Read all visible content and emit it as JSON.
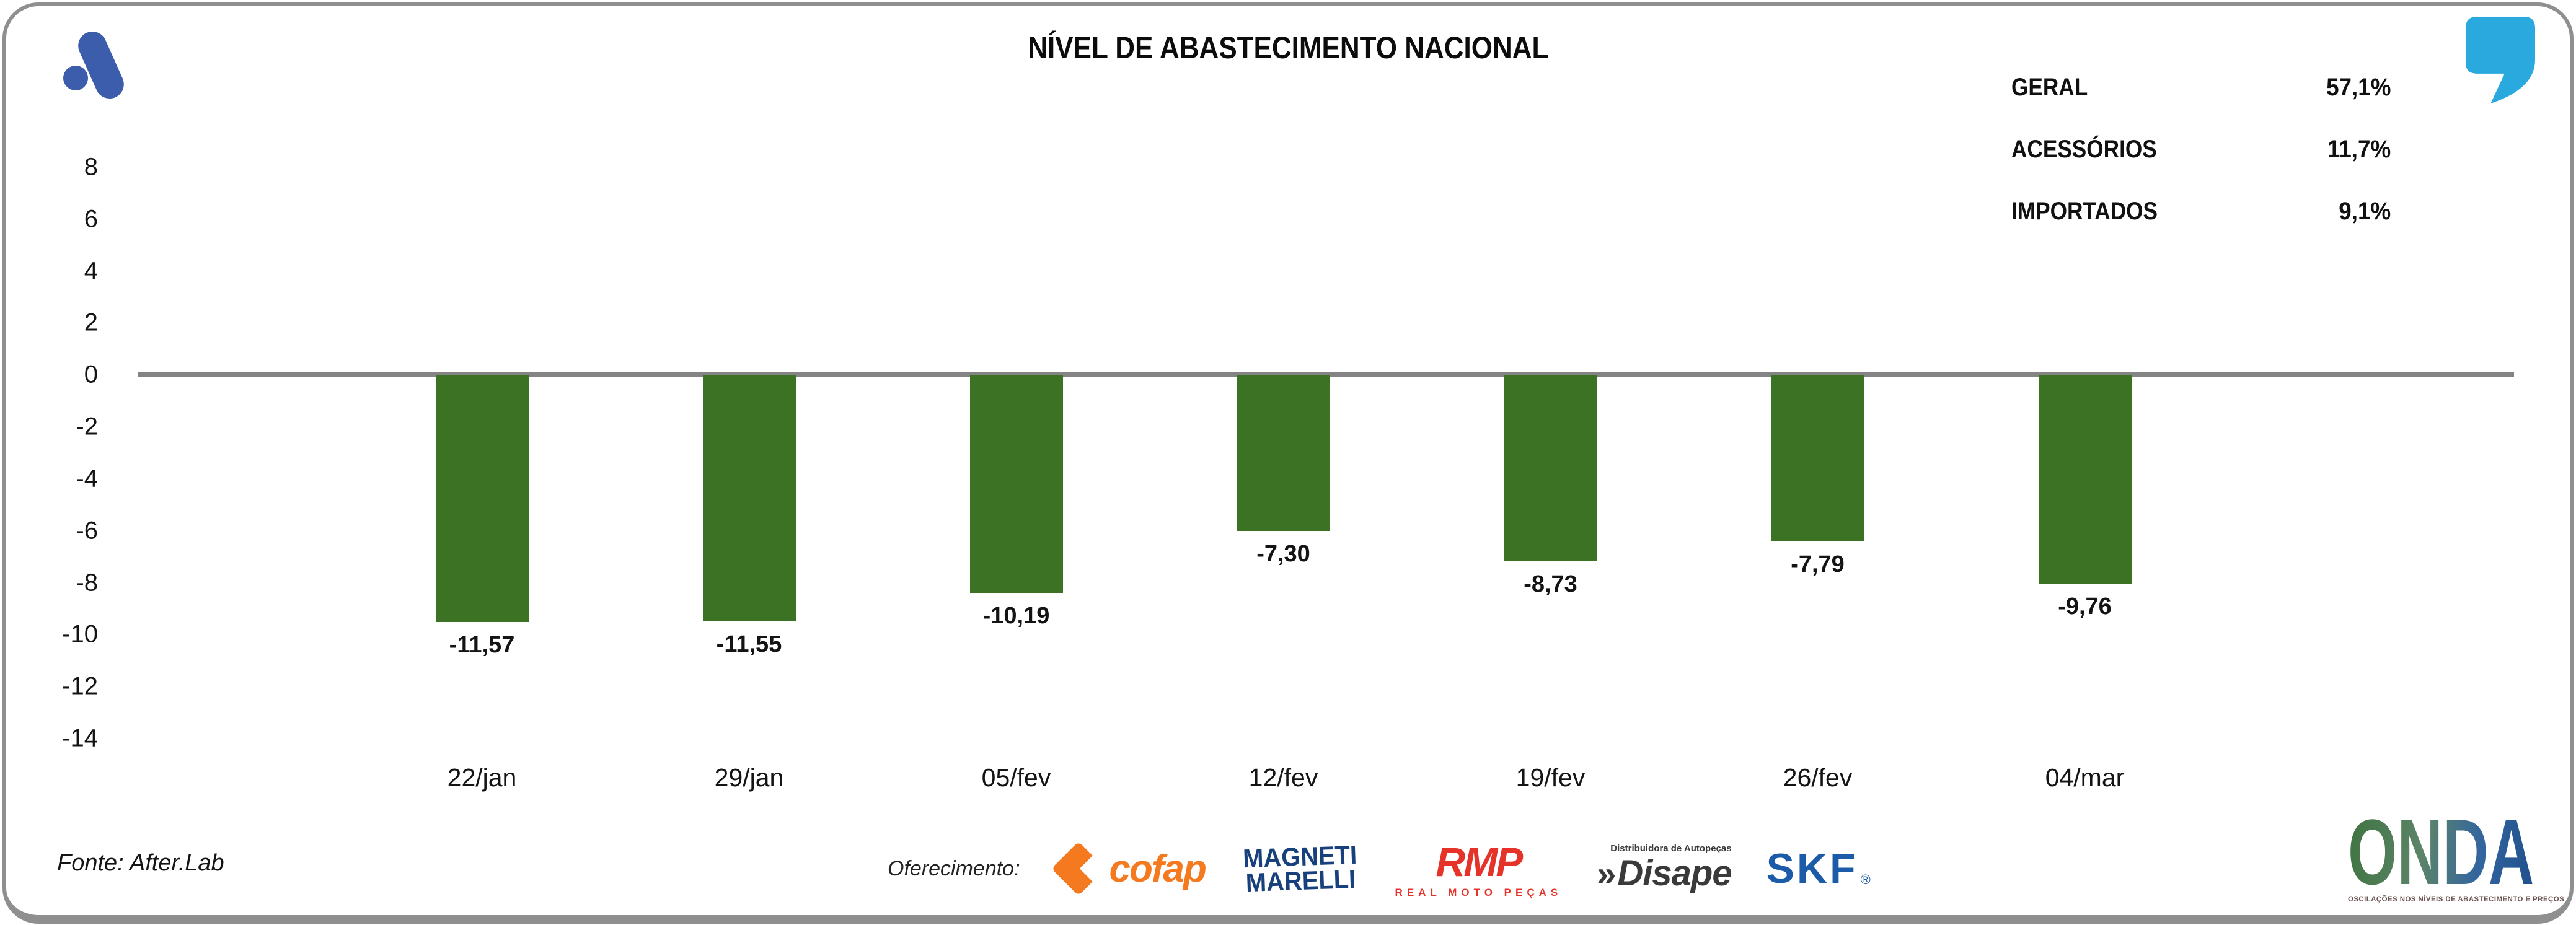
{
  "chart_data": {
    "type": "bar",
    "title": "NÍVEL DE ABASTECIMENTO NACIONAL",
    "categories": [
      "22/jan",
      "29/jan",
      "05/fev",
      "12/fev",
      "19/fev",
      "26/fev",
      "04/mar"
    ],
    "values": [
      -11.57,
      -11.55,
      -10.19,
      -7.3,
      -8.73,
      -7.79,
      -9.76
    ],
    "value_labels": [
      "-11,57",
      "-11,55",
      "-10,19",
      "-7,30",
      "-8,73",
      "-7,79",
      "-9,76"
    ],
    "ylim": [
      -14,
      8
    ],
    "yticks": [
      8,
      6,
      4,
      2,
      0,
      -2,
      -4,
      -6,
      -8,
      -10,
      -12,
      -14
    ],
    "xlabel": "",
    "ylabel": "",
    "grid": false,
    "bar_color": "#3b7223",
    "zero_line_color": "#848484",
    "legend_position": "top-right",
    "legend": {
      "entries": [
        {
          "label": "GERAL",
          "value": "57,1%"
        },
        {
          "label": "ACESSÓRIOS",
          "value": "11,7%"
        },
        {
          "label": "IMPORTADOS",
          "value": "9,1%"
        }
      ]
    }
  },
  "footer": {
    "source": "Fonte: After.Lab",
    "offering_label": "Oferecimento:",
    "sponsors": {
      "cofap": {
        "name": "cofap"
      },
      "magneti": {
        "line1": "MAGNETI",
        "line2": "MARELLI"
      },
      "rmp": {
        "name": "RMP",
        "tagline": "REAL MOTO PEÇAS"
      },
      "disape": {
        "chevrons": "»",
        "name": "Disape",
        "tagline": "Distribuidora de Autopeças"
      },
      "skf": {
        "name": "SKF",
        "registered": "®"
      }
    }
  },
  "branding": {
    "onda": {
      "name": "ONDA",
      "tagline": "OSCILAÇÕES NOS NÍVEIS DE ABASTECIMENTO E PREÇOS"
    }
  },
  "colors": {
    "bar_green": "#3b7223",
    "axis_gray": "#848484",
    "brand_blue": "#3c5dab",
    "quote_teal": "#29a9dd",
    "cofap_orange": "#f4791f",
    "magneti_navy": "#17407c",
    "rmp_red": "#e6332a",
    "disape_gray": "#3a3a3a",
    "skf_blue": "#1c5ba8"
  }
}
